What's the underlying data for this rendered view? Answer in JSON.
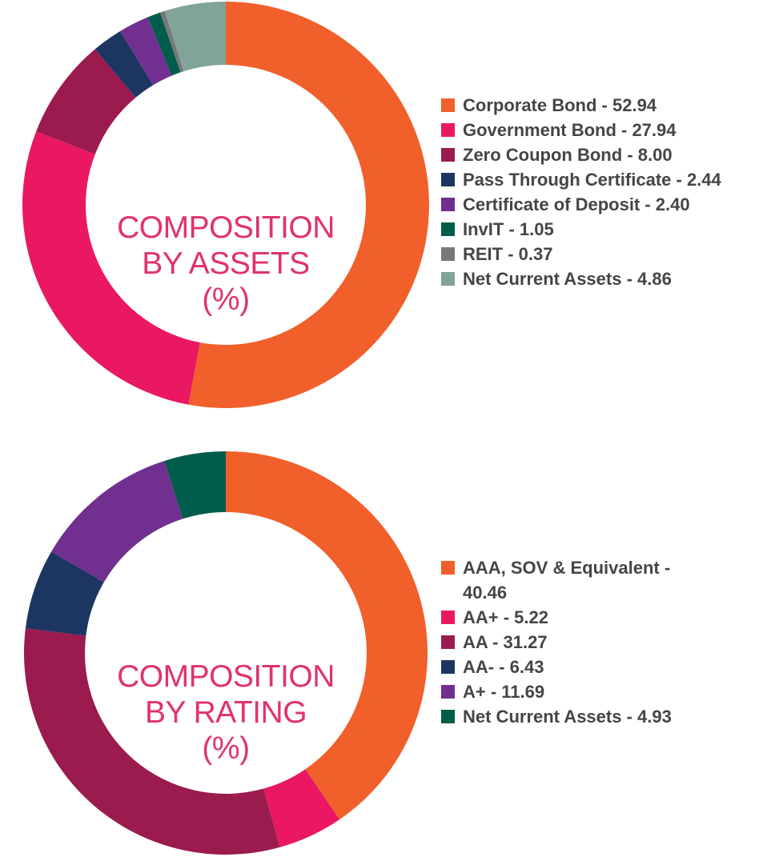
{
  "chart_data": [
    {
      "type": "pie",
      "donut": true,
      "title": [
        "COMPOSITION",
        "BY ASSETS",
        "(%)"
      ],
      "start": "top",
      "direction": "clockwise",
      "legend_position": "right",
      "slices": [
        {
          "label": "Corporate Bond",
          "value": 52.94,
          "color": "#f15f2a",
          "legend": "Corporate Bond - 52.94"
        },
        {
          "label": "Government Bond",
          "value": 27.94,
          "color": "#ea1763",
          "legend": "Government Bond - 27.94"
        },
        {
          "label": "Zero Coupon Bond",
          "value": 8.0,
          "color": "#9b1b4e",
          "legend": "Zero Coupon Bond - 8.00"
        },
        {
          "label": "Pass Through Certificate",
          "value": 2.44,
          "color": "#1d3661",
          "legend": "Pass Through Certificate - 2.44"
        },
        {
          "label": "Certificate of Deposit",
          "value": 2.4,
          "color": "#712f8f",
          "legend": "Certificate of Deposit - 2.40"
        },
        {
          "label": "InvIT",
          "value": 1.05,
          "color": "#005d4b",
          "legend": "InvIT - 1.05"
        },
        {
          "label": "REIT",
          "value": 0.37,
          "color": "#77787b",
          "legend": "REIT - 0.37"
        },
        {
          "label": "Net Current Assets",
          "value": 4.86,
          "color": "#80a39a",
          "legend": "Net Current Assets - 4.86"
        }
      ]
    },
    {
      "type": "pie",
      "donut": true,
      "title": [
        "COMPOSITION",
        "BY RATING",
        "(%)"
      ],
      "start": "top",
      "direction": "clockwise",
      "legend_position": "right",
      "slices": [
        {
          "label": "AAA, SOV & Equivalent",
          "value": 40.46,
          "color": "#f15f2a",
          "legend": "AAA, SOV & Equivalent - 40.46"
        },
        {
          "label": "AA+",
          "value": 5.22,
          "color": "#ea1763",
          "legend": "AA+ - 5.22"
        },
        {
          "label": "AA",
          "value": 31.27,
          "color": "#9b1b4e",
          "legend": "AA - 31.27"
        },
        {
          "label": "AA-",
          "value": 6.43,
          "color": "#1d3661",
          "legend": "AA- - 6.43"
        },
        {
          "label": "A+",
          "value": 11.69,
          "color": "#712f8f",
          "legend": "A+ - 11.69"
        },
        {
          "label": "Net Current Assets",
          "value": 4.93,
          "color": "#005d4b",
          "legend": "Net Current Assets - 4.93"
        }
      ]
    }
  ]
}
